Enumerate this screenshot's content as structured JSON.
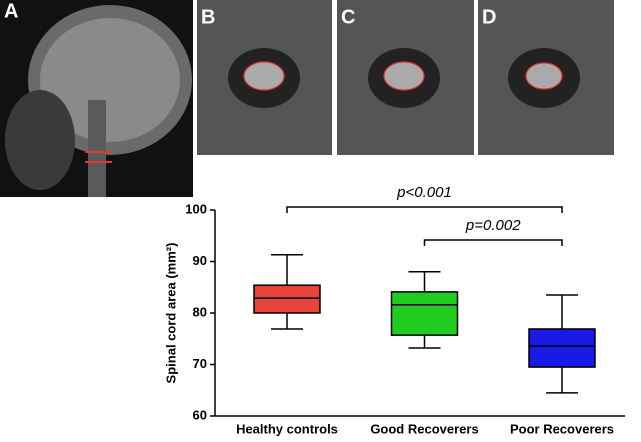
{
  "chart_data": {
    "type": "box",
    "panel_labels": [
      "A",
      "B",
      "C",
      "D"
    ],
    "ylabel": "Spinal cord area (mm²)",
    "categories": [
      "Healthy controls",
      "Good Recoverers",
      "Poor Recoverers"
    ],
    "boxes": [
      {
        "min": 76.9,
        "q1": 80.0,
        "median": 82.9,
        "q3": 85.4,
        "max": 91.3
      },
      {
        "min": 73.2,
        "q1": 75.7,
        "median": 81.6,
        "q3": 84.1,
        "max": 88.0
      },
      {
        "min": 64.5,
        "q1": 69.5,
        "median": 73.6,
        "q3": 76.9,
        "max": 83.5
      }
    ],
    "colors": [
      "#e8423c",
      "#1fcc1f",
      "#1a1ae6"
    ],
    "ylim": [
      60,
      100
    ],
    "yticks": [
      60,
      70,
      80,
      90,
      100
    ],
    "annotations": [
      {
        "text": "p<0.001",
        "from": 0,
        "to": 2
      },
      {
        "text": "p=0.002",
        "from": 1,
        "to": 2
      }
    ]
  }
}
